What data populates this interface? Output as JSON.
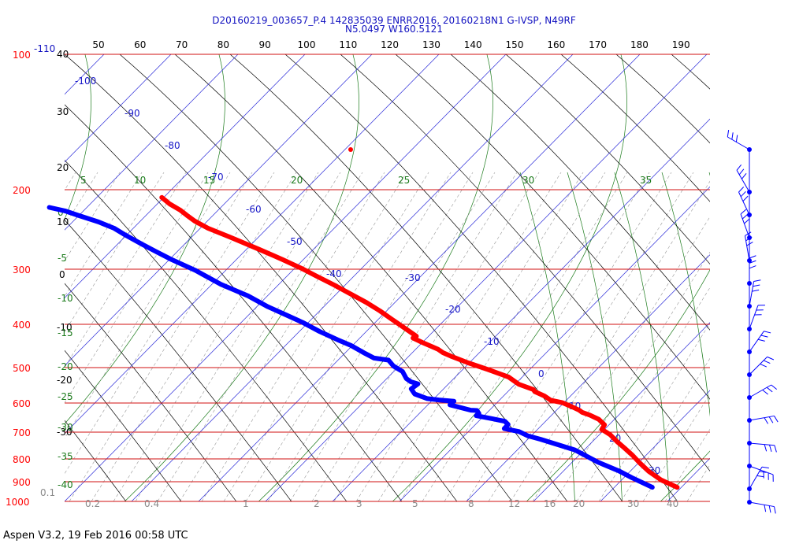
{
  "header": {
    "line1": "D20160219_003657_P.4 142835039 ENRR2016, 20160218N1 G-IVSP, N49RF",
    "line2": "N5.0497 W160.5121"
  },
  "footer": {
    "text": "Aspen V3.2, 19 Feb 2016  00:58 UTC"
  },
  "chart_data": {
    "type": "line",
    "subtype": "skew-t log-p diagram",
    "pressure_ticks": [
      "100",
      "200",
      "300",
      "400",
      "500",
      "600",
      "700",
      "800",
      "900",
      "1000"
    ],
    "extra_left_label": "-110",
    "temperature_top_ticks": [
      "50",
      "60",
      "70",
      "80",
      "90",
      "100",
      "110",
      "120",
      "130",
      "140",
      "150",
      "160",
      "170",
      "180",
      "190"
    ],
    "height_labels": [
      "40",
      "30",
      "20",
      "10",
      "0",
      "-10",
      "-20",
      "-30"
    ],
    "isotherm_labels": [
      "-100",
      "-90",
      "-80",
      "-70",
      "-60",
      "-50",
      "-40",
      "-30",
      "-20",
      "-10",
      "0",
      "10",
      "20",
      "30"
    ],
    "theta_e_labels": [
      "5",
      "10",
      "15",
      "20",
      "25",
      "30",
      "35"
    ],
    "dry_adiabat_labels": [
      "0",
      "-5",
      "-10",
      "-15",
      "-20",
      "-25",
      "-30",
      "-35",
      "-40"
    ],
    "mixing_ratio_labels": [
      "0.1",
      "0.2",
      "0.4",
      "1",
      "2",
      "3",
      "5",
      "8",
      "12",
      "16",
      "20",
      "30",
      "40"
    ],
    "series": [
      {
        "color": "#ff0000",
        "x": [
          -46.4,
          -45.8,
          -44.3,
          -43.7,
          -42.9,
          -40.8,
          -36.6,
          -34.2,
          -30.9,
          -28.1,
          -26.4,
          -22.8,
          -20.6,
          -17.6,
          -15.3,
          -12.5,
          -10.7,
          -9.4,
          -8.2,
          -6.6,
          -8.2,
          -6.6,
          -3.6,
          -3.0,
          -1.6,
          2.0,
          6.2,
          10.6,
          11.7,
          14.8,
          14.6,
          16.4,
          17.1,
          20.0,
          21.9,
          23.2,
          23.5,
          25.1,
          26.7,
          26.9,
          24.7,
          25.8,
          25.9,
          26.4,
          26.8,
          26.8,
          27.2,
          28.6,
          31.5
        ],
        "y": [
          209,
          216,
          223,
          229,
          236,
          245,
          256,
          263,
          273,
          282,
          288,
          302,
          313,
          328,
          342,
          359,
          375,
          391,
          406,
          427,
          431,
          441,
          457,
          465,
          473,
          490,
          507,
          527,
          547,
          562,
          568,
          581,
          594,
          601,
          614,
          625,
          632,
          641,
          655,
          674,
          690,
          709,
          734,
          759,
          789,
          820,
          857,
          896,
          930
        ]
      },
      {
        "color": "#0000ff",
        "x": [
          -85.0,
          -81.1,
          -78.3,
          -73.7,
          -70.6,
          -69.0,
          -66.5,
          -64.3,
          -61.8,
          -57.3,
          -53.3,
          -48.1,
          -45.0,
          -41.4,
          -38.6,
          -35.9,
          -32.6,
          -30.1,
          -27.9,
          -26.5,
          -22.5,
          -22.7,
          -21.4,
          -22.3,
          -21.8,
          -20.2,
          -23.8,
          -24.2,
          -21.6,
          -18.3,
          -13.9,
          -16.2,
          -11.2,
          -9.3,
          -9.6,
          -11.1,
          -6.9,
          -3.7,
          -3.6,
          -6.0,
          -2.2,
          -0.7,
          2.3,
          10.1,
          13.8,
          17.8,
          20.0,
          23.6
        ],
        "y": [
          220,
          224,
          229,
          237,
          245,
          254,
          266,
          276,
          287,
          304,
          327,
          347,
          367,
          384,
          398,
          417,
          435,
          448,
          467,
          478,
          483,
          498,
          512,
          531,
          540,
          546,
          560,
          575,
          589,
          593,
          597,
          608,
          625,
          626,
          636,
          643,
          653,
          662,
          673,
          687,
          698,
          713,
          726,
          767,
          817,
          854,
          885,
          930
        ]
      }
    ]
  }
}
